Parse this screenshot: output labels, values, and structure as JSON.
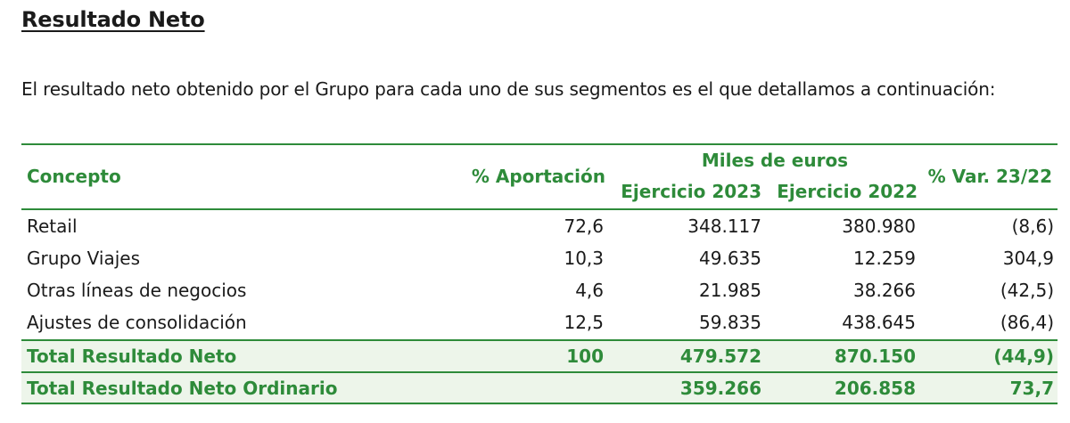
{
  "title": "Resultado Neto",
  "intro": "El resultado neto obtenido por el Grupo para cada uno de sus segmentos es el que detallamos a continuación:",
  "table": {
    "headers": {
      "concepto": "Concepto",
      "aportacion": "% Aportación",
      "group": "Miles de euros",
      "ej2023": "Ejercicio 2023",
      "ej2022": "Ejercicio 2022",
      "var": "% Var. 23/22"
    },
    "rows": [
      {
        "concepto": "Retail",
        "aportacion": "72,6",
        "ej2023": "348.117",
        "ej2022": "380.980",
        "var": "(8,6)"
      },
      {
        "concepto": "Grupo Viajes",
        "aportacion": "10,3",
        "ej2023": "49.635",
        "ej2022": "12.259",
        "var": "304,9"
      },
      {
        "concepto": "Otras líneas de negocios",
        "aportacion": "4,6",
        "ej2023": "21.985",
        "ej2022": "38.266",
        "var": "(42,5)"
      },
      {
        "concepto": "Ajustes de consolidación",
        "aportacion": "12,5",
        "ej2023": "59.835",
        "ej2022": "438.645",
        "var": "(86,4)"
      }
    ],
    "totals": [
      {
        "concepto": "Total Resultado Neto",
        "aportacion": "100",
        "ej2023": "479.572",
        "ej2022": "870.150",
        "var": "(44,9)"
      },
      {
        "concepto": "Total Resultado Neto Ordinario",
        "aportacion": "",
        "ej2023": "359.266",
        "ej2022": "206.858",
        "var": "73,7"
      }
    ]
  },
  "colors": {
    "accent": "#2e8b3a",
    "total_bg": "#edf5ea"
  }
}
